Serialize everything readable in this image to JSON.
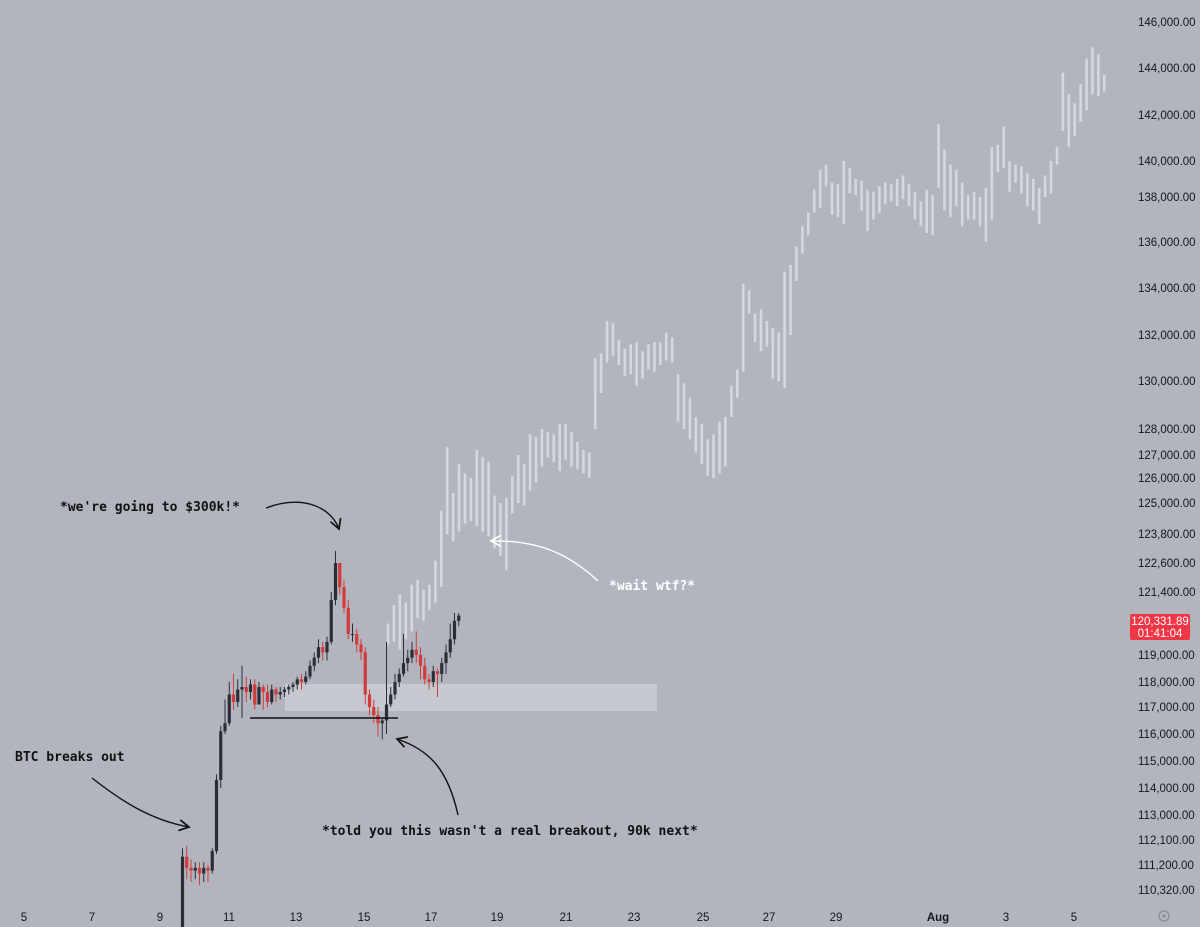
{
  "chart_data": {
    "type": "candlestick",
    "instrument": "BTC",
    "x_ticks": [
      "5",
      "7",
      "9",
      "11",
      "13",
      "15",
      "17",
      "19",
      "21",
      "23",
      "25",
      "27",
      "29",
      "Aug",
      "3",
      "5"
    ],
    "y_ticks": [
      "146,000.00",
      "144,000.00",
      "142,000.00",
      "140,000.00",
      "138,000.00",
      "136,000.00",
      "134,000.00",
      "132,000.00",
      "130,000.00",
      "128,000.00",
      "127,000.00",
      "126,000.00",
      "125,000.00",
      "123,800.00",
      "122,600.00",
      "121,400.00",
      "119,000.00",
      "118,000.00",
      "117,000.00",
      "116,000.00",
      "115,000.00",
      "114,000.00",
      "113,000.00",
      "112,100.00",
      "111,200.00",
      "110,320.00"
    ],
    "price_label": {
      "price": "120,331.89",
      "countdown": "01:41:04",
      "value": 120331.89
    },
    "candles": [
      [
        108200,
        111500,
        108000,
        111800
      ],
      [
        111500,
        111100,
        110700,
        111900
      ],
      [
        111100,
        111000,
        110600,
        111400
      ],
      [
        111000,
        111100,
        110700,
        111300
      ],
      [
        111100,
        110900,
        110500,
        111300
      ],
      [
        110900,
        111100,
        110600,
        111300
      ],
      [
        111100,
        111000,
        110600,
        111200
      ],
      [
        111000,
        111700,
        110900,
        111800
      ],
      [
        111700,
        114300,
        111600,
        114500
      ],
      [
        114300,
        116100,
        114000,
        116300
      ],
      [
        116100,
        116400,
        116000,
        117300
      ],
      [
        116400,
        117500,
        116300,
        118000
      ],
      [
        117500,
        117200,
        116900,
        118300
      ],
      [
        117200,
        117700,
        117000,
        118100
      ],
      [
        117700,
        117800,
        116600,
        118600
      ],
      [
        117800,
        117600,
        117200,
        118200
      ],
      [
        117600,
        117900,
        117300,
        118100
      ],
      [
        117900,
        117100,
        116900,
        118100
      ],
      [
        117100,
        117800,
        117100,
        118000
      ],
      [
        117800,
        117600,
        116900,
        117900
      ],
      [
        117600,
        117200,
        117000,
        117900
      ],
      [
        117200,
        117700,
        117100,
        117900
      ],
      [
        117700,
        117500,
        117200,
        117800
      ],
      [
        117500,
        117600,
        117300,
        117800
      ],
      [
        117600,
        117700,
        117400,
        117800
      ],
      [
        117700,
        117800,
        117500,
        117900
      ],
      [
        117800,
        117900,
        117600,
        118000
      ],
      [
        117900,
        118100,
        117700,
        118200
      ],
      [
        118100,
        118000,
        117700,
        118300
      ],
      [
        118000,
        118200,
        117900,
        118400
      ],
      [
        118200,
        118600,
        118100,
        118800
      ],
      [
        118600,
        118900,
        118400,
        119100
      ],
      [
        118900,
        119300,
        118700,
        119600
      ],
      [
        119300,
        119100,
        118800,
        119500
      ],
      [
        119100,
        119500,
        118800,
        119700
      ],
      [
        119500,
        121100,
        119400,
        121400
      ],
      [
        121100,
        122600,
        120900,
        123100
      ],
      [
        122600,
        121600,
        121300,
        122600
      ],
      [
        121600,
        120800,
        120600,
        121900
      ],
      [
        120800,
        119800,
        119600,
        121100
      ],
      [
        119800,
        119800,
        119500,
        120200
      ],
      [
        119800,
        119400,
        119100,
        120000
      ],
      [
        119400,
        119100,
        118800,
        119600
      ],
      [
        119100,
        117500,
        117100,
        119300
      ],
      [
        117500,
        117000,
        116700,
        117700
      ],
      [
        117000,
        116700,
        116400,
        117300
      ],
      [
        116700,
        116400,
        115900,
        117000
      ],
      [
        116400,
        116500,
        115800,
        116600
      ],
      [
        116500,
        117100,
        116000,
        119500
      ],
      [
        117100,
        117500,
        117000,
        117800
      ],
      [
        117500,
        118000,
        117300,
        118300
      ],
      [
        118000,
        118300,
        117800,
        118500
      ],
      [
        118300,
        118700,
        118200,
        119800
      ],
      [
        118700,
        118900,
        118400,
        119200
      ],
      [
        118900,
        119200,
        118700,
        119500
      ],
      [
        119200,
        119000,
        118700,
        119900
      ],
      [
        119000,
        118600,
        118100,
        119300
      ],
      [
        118600,
        118100,
        117900,
        118900
      ],
      [
        118100,
        118000,
        117700,
        118300
      ],
      [
        118000,
        118400,
        117800,
        118600
      ],
      [
        118400,
        118300,
        117400,
        118500
      ],
      [
        118300,
        118700,
        118000,
        118900
      ],
      [
        118700,
        119100,
        118300,
        119400
      ],
      [
        119100,
        119600,
        118900,
        120200
      ],
      [
        119600,
        120300,
        119400,
        120600
      ],
      [
        120300,
        120500,
        120100,
        120600
      ]
    ],
    "projection": [
      [
        119400,
        120200
      ],
      [
        119500,
        120900
      ],
      [
        119200,
        121300
      ],
      [
        119600,
        121000
      ],
      [
        119900,
        121700
      ],
      [
        120400,
        121900
      ],
      [
        120300,
        121500
      ],
      [
        120700,
        121700
      ],
      [
        121000,
        122700
      ],
      [
        121600,
        124700
      ],
      [
        123800,
        127300
      ],
      [
        123500,
        125400
      ],
      [
        123900,
        126600
      ],
      [
        124200,
        126200
      ],
      [
        124300,
        126000
      ],
      [
        124100,
        127200
      ],
      [
        123900,
        126900
      ],
      [
        123700,
        126700
      ],
      [
        123200,
        125300
      ],
      [
        122900,
        125000
      ],
      [
        122300,
        125200
      ],
      [
        124600,
        126100
      ],
      [
        125000,
        127000
      ],
      [
        124900,
        126600
      ],
      [
        125500,
        127800
      ],
      [
        125800,
        127700
      ],
      [
        126500,
        128000
      ],
      [
        126900,
        127900
      ],
      [
        126700,
        127800
      ],
      [
        126300,
        128200
      ],
      [
        126800,
        128200
      ],
      [
        126500,
        127900
      ],
      [
        126400,
        127500
      ],
      [
        126200,
        127200
      ],
      [
        126000,
        127100
      ],
      [
        128000,
        131000
      ],
      [
        129500,
        131200
      ],
      [
        130800,
        132600
      ],
      [
        131100,
        132500
      ],
      [
        130700,
        131800
      ],
      [
        130200,
        131400
      ],
      [
        130300,
        131600
      ],
      [
        129800,
        131700
      ],
      [
        130100,
        131300
      ],
      [
        130500,
        131600
      ],
      [
        130400,
        131700
      ],
      [
        130700,
        131700
      ],
      [
        130900,
        132100
      ],
      [
        130800,
        131900
      ],
      [
        128300,
        130300
      ],
      [
        128000,
        129900
      ],
      [
        127600,
        129300
      ],
      [
        127100,
        128500
      ],
      [
        126600,
        128200
      ],
      [
        126100,
        127600
      ],
      [
        126000,
        127800
      ],
      [
        126200,
        128300
      ],
      [
        126500,
        128500
      ],
      [
        128500,
        129800
      ],
      [
        129300,
        130500
      ],
      [
        130400,
        134200
      ],
      [
        132900,
        133900
      ],
      [
        131700,
        132900
      ],
      [
        131300,
        133100
      ],
      [
        131500,
        132600
      ],
      [
        130100,
        132300
      ],
      [
        130000,
        132100
      ],
      [
        129700,
        134700
      ],
      [
        132000,
        135000
      ],
      [
        134300,
        135800
      ],
      [
        135500,
        136700
      ],
      [
        136300,
        137300
      ],
      [
        137300,
        138400
      ],
      [
        137500,
        139500
      ],
      [
        138600,
        139800
      ],
      [
        137200,
        138800
      ],
      [
        137100,
        138700
      ],
      [
        136800,
        140000
      ],
      [
        138200,
        139600
      ],
      [
        138100,
        139000
      ],
      [
        137400,
        138900
      ],
      [
        136500,
        138400
      ],
      [
        137000,
        138300
      ],
      [
        137300,
        138600
      ],
      [
        137700,
        138800
      ],
      [
        137800,
        138700
      ],
      [
        137600,
        139000
      ],
      [
        137900,
        139200
      ],
      [
        137600,
        138700
      ],
      [
        137000,
        138300
      ],
      [
        136700,
        137800
      ],
      [
        136400,
        138400
      ],
      [
        136300,
        138100
      ],
      [
        138500,
        141600
      ],
      [
        137400,
        140500
      ],
      [
        137100,
        139800
      ],
      [
        137600,
        139500
      ],
      [
        136700,
        138800
      ],
      [
        137000,
        138100
      ],
      [
        137000,
        138300
      ],
      [
        136700,
        138000
      ],
      [
        136000,
        138500
      ],
      [
        137000,
        140600
      ],
      [
        139400,
        140700
      ],
      [
        139600,
        141500
      ],
      [
        138300,
        140000
      ],
      [
        138800,
        139800
      ],
      [
        138200,
        139700
      ],
      [
        137600,
        139300
      ],
      [
        137400,
        139000
      ],
      [
        136800,
        138500
      ],
      [
        138000,
        139200
      ],
      [
        138200,
        140000
      ],
      [
        139800,
        140600
      ],
      [
        141300,
        143800
      ],
      [
        140600,
        142900
      ],
      [
        141100,
        142500
      ],
      [
        141700,
        143300
      ],
      [
        142200,
        144400
      ],
      [
        142900,
        144900
      ],
      [
        142800,
        144600
      ],
      [
        143000,
        143700
      ]
    ]
  },
  "annotations": {
    "top": "*we're going to $300k!*",
    "left": "BTC breaks out",
    "bottom": "*told you this wasn't a real breakout, 90k next*",
    "right": "*wait wtf?*"
  },
  "colors": {
    "background": "#b2b5be",
    "up": "#2a2e39",
    "down": "#d33a3a",
    "projection": "#d6d8de",
    "zone": "#c7c9d0",
    "price_label": "#f23645"
  },
  "icons": {
    "settings": "gear-icon"
  }
}
